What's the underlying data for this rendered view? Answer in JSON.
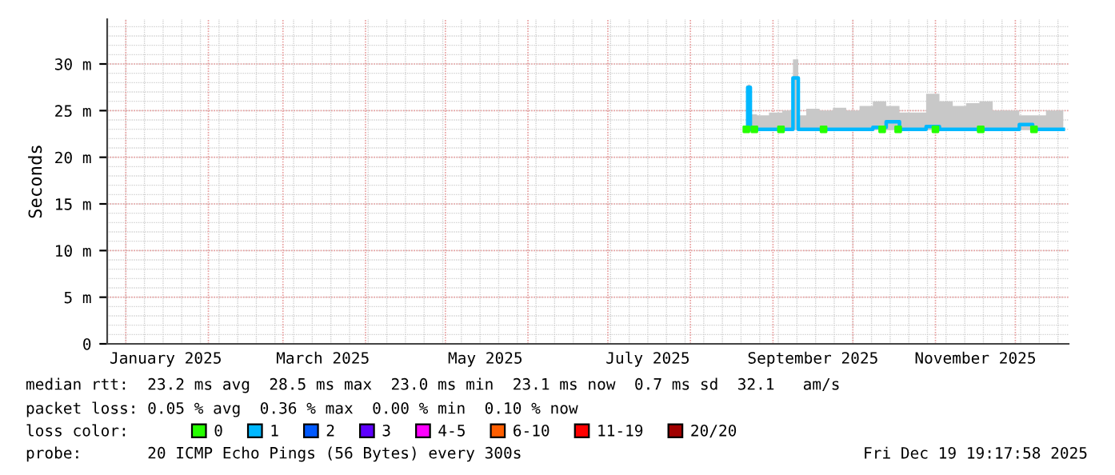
{
  "chart_data": {
    "type": "step",
    "ylabel": "Seconds",
    "x": [
      "2025-08-22",
      "2025-08-23",
      "2025-08-24",
      "2025-08-28",
      "2025-09-02",
      "2025-09-07",
      "2025-09-10",
      "2025-09-11",
      "2025-09-16",
      "2025-09-21",
      "2025-09-26",
      "2025-10-01",
      "2025-10-06",
      "2025-10-11",
      "2025-10-16",
      "2025-10-21",
      "2025-10-26",
      "2025-10-31",
      "2025-11-05",
      "2025-11-10",
      "2025-11-15",
      "2025-11-20",
      "2025-11-25",
      "2025-11-30",
      "2025-12-05",
      "2025-12-10",
      "2025-12-15",
      "2025-12-19"
    ],
    "xlim": [
      "2024-12-25",
      "2025-12-21"
    ],
    "xticks": [
      {
        "value": "2025-01-01",
        "label": null
      },
      {
        "value": "2025-01-16",
        "label": "January 2025"
      },
      {
        "value": "2025-02-01",
        "label": null
      },
      {
        "value": "2025-03-01",
        "label": null
      },
      {
        "value": "2025-03-16",
        "label": "March 2025"
      },
      {
        "value": "2025-04-01",
        "label": null
      },
      {
        "value": "2025-05-01",
        "label": null
      },
      {
        "value": "2025-05-16",
        "label": "May 2025"
      },
      {
        "value": "2025-06-01",
        "label": null
      },
      {
        "value": "2025-07-01",
        "label": null
      },
      {
        "value": "2025-07-16",
        "label": "July 2025"
      },
      {
        "value": "2025-08-01",
        "label": null
      },
      {
        "value": "2025-09-01",
        "label": null
      },
      {
        "value": "2025-09-16",
        "label": "September 2025"
      },
      {
        "value": "2025-10-01",
        "label": null
      },
      {
        "value": "2025-11-01",
        "label": null
      },
      {
        "value": "2025-11-16",
        "label": "November 2025"
      },
      {
        "value": "2025-12-01",
        "label": null
      }
    ],
    "ylim": [
      0,
      34.8
    ],
    "yticks": [
      0,
      {
        "value": 5,
        "label": "5 m"
      },
      {
        "value": 10,
        "label": "10 m"
      },
      {
        "value": 15,
        "label": "15 m"
      },
      {
        "value": 20,
        "label": "20 m"
      },
      {
        "value": 25,
        "label": "25 m"
      },
      {
        "value": 30,
        "label": "30 m"
      }
    ],
    "grid": true,
    "legend": "bottom left",
    "legend_title": "loss color:",
    "series": [
      {
        "name": "0",
        "color": "#26ff00",
        "type": "scatter",
        "marker": "square",
        "x": [
          "2025-08-22",
          "2025-08-25",
          "2025-09-04",
          "2025-09-20",
          "2025-10-12",
          "2025-10-18",
          "2025-11-01",
          "2025-11-18",
          "2025-12-08"
        ],
        "values": [
          23.0,
          23.0,
          23.0,
          23.0,
          23.0,
          23.0,
          23.0,
          23.0,
          23.0
        ]
      },
      {
        "name": "1",
        "color": "#00b8ff",
        "values": [
          23.0,
          27.5,
          23.0,
          23.0,
          23.0,
          23.0,
          28.5,
          23.0,
          23.0,
          23.0,
          23.0,
          23.0,
          23.0,
          23.2,
          23.8,
          23.0,
          23.0,
          23.3,
          23.0,
          23.0,
          23.0,
          23.0,
          23.0,
          23.0,
          23.5,
          23.0,
          23.0,
          23.0
        ],
        "lower": [
          22.9,
          22.9,
          22.9,
          22.9,
          22.9,
          22.9,
          22.9,
          22.9,
          22.9,
          22.9,
          22.9,
          22.9,
          22.9,
          22.9,
          22.9,
          22.9,
          22.9,
          22.9,
          22.9,
          22.9,
          22.9,
          22.9,
          22.9,
          22.9,
          22.9,
          22.9,
          22.9,
          22.9
        ],
        "upper": [
          23.5,
          27.8,
          24.6,
          24.5,
          24.8,
          25.0,
          30.5,
          24.5,
          25.2,
          25.0,
          25.3,
          25.0,
          25.5,
          26.0,
          25.5,
          24.8,
          24.8,
          26.8,
          26.0,
          25.5,
          25.8,
          26.0,
          25.0,
          25.0,
          24.5,
          24.5,
          25.0,
          25.0
        ]
      },
      {
        "name": "2",
        "color": "#0059ff",
        "values": [
          null,
          null,
          null,
          null,
          null,
          null,
          null,
          null,
          null,
          null,
          null,
          null,
          null,
          null,
          null,
          null,
          null,
          null,
          null,
          null,
          null,
          null,
          null,
          null,
          null,
          null,
          null,
          null
        ]
      },
      {
        "name": "3",
        "color": "#5e00ff",
        "values": [
          null,
          null,
          null,
          null,
          null,
          null,
          null,
          null,
          null,
          null,
          null,
          null,
          null,
          null,
          null,
          null,
          null,
          null,
          null,
          null,
          null,
          null,
          null,
          null,
          null,
          null,
          null,
          null
        ]
      },
      {
        "name": "4-5",
        "color": "#ff00ff",
        "values": [
          null,
          null,
          null,
          null,
          null,
          null,
          null,
          null,
          null,
          null,
          null,
          null,
          null,
          null,
          null,
          null,
          null,
          null,
          null,
          null,
          null,
          null,
          null,
          null,
          null,
          null,
          null,
          null
        ]
      },
      {
        "name": "6-10",
        "color": "#ff5e00",
        "values": [
          null,
          null,
          null,
          null,
          null,
          null,
          null,
          null,
          null,
          null,
          null,
          null,
          null,
          null,
          null,
          null,
          null,
          null,
          null,
          null,
          null,
          null,
          null,
          null,
          null,
          null,
          null,
          null
        ]
      },
      {
        "name": "11-19",
        "color": "#ff0000",
        "values": [
          null,
          null,
          null,
          null,
          null,
          null,
          null,
          null,
          null,
          null,
          null,
          null,
          null,
          null,
          null,
          null,
          null,
          null,
          null,
          null,
          null,
          null,
          null,
          null,
          null,
          null,
          null,
          null
        ]
      },
      {
        "name": "20/20",
        "color": "#a10000",
        "values": [
          null,
          null,
          null,
          null,
          null,
          null,
          null,
          null,
          null,
          null,
          null,
          null,
          null,
          null,
          null,
          null,
          null,
          null,
          null,
          null,
          null,
          null,
          null,
          null,
          null,
          null,
          null,
          null
        ]
      }
    ],
    "annotations": [
      "median rtt:  23.2 ms avg  28.5 ms max  23.0 ms min  23.1 ms now  0.7 ms sd  32.1   am/s",
      "packet loss: 0.05 % avg  0.36 % max  0.00 % min  0.10 % now",
      "probe:       20 ICMP Echo Pings (56 Bytes) every 300s",
      "Fri Dec 19 19:17:58 2025"
    ]
  }
}
